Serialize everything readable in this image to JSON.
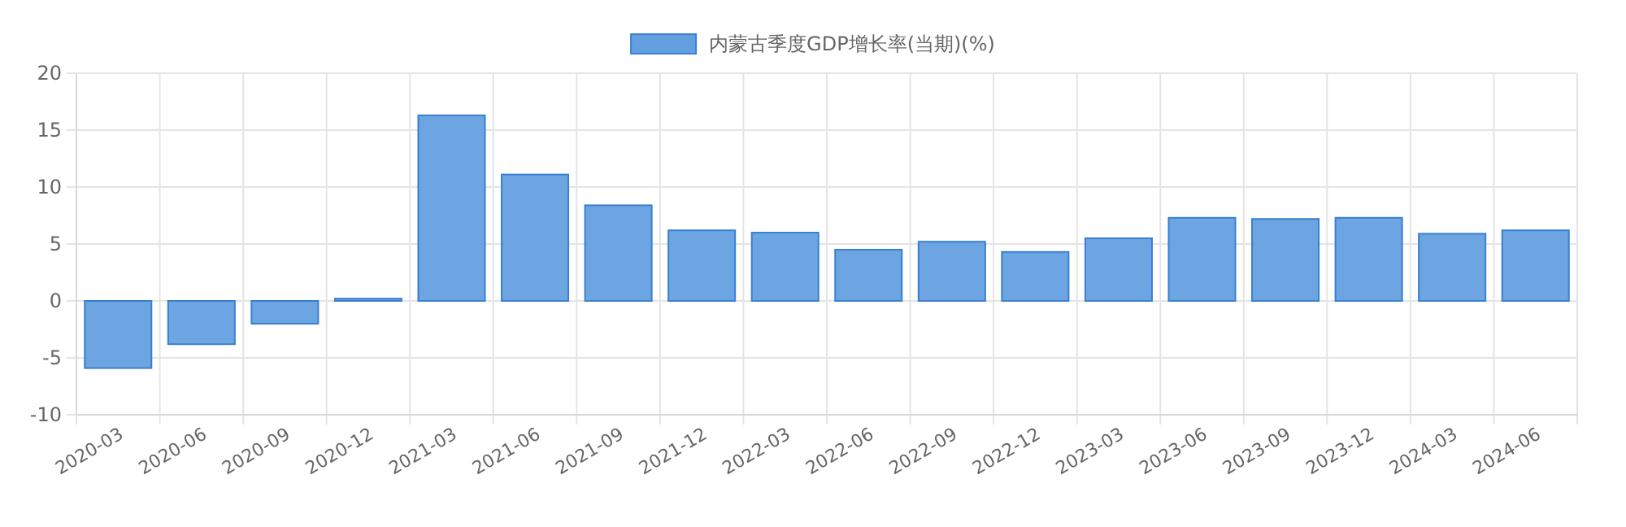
{
  "chart_data": {
    "type": "bar",
    "categories": [
      "2020-03",
      "2020-06",
      "2020-09",
      "2020-12",
      "2021-03",
      "2021-06",
      "2021-09",
      "2021-12",
      "2022-03",
      "2022-06",
      "2022-09",
      "2022-12",
      "2023-03",
      "2023-06",
      "2023-09",
      "2023-12",
      "2024-03",
      "2024-06"
    ],
    "series": [
      {
        "name": "内蒙古季度GDP增长率(当期)(%)",
        "color": "#64a0e0",
        "values": [
          -5.9,
          -3.8,
          -2.0,
          0.2,
          16.3,
          11.1,
          8.4,
          6.2,
          6.0,
          4.5,
          5.2,
          4.3,
          5.5,
          7.3,
          7.2,
          7.3,
          5.9,
          6.2
        ]
      }
    ],
    "ylim": [
      -10,
      20
    ],
    "yticks": [
      -10,
      -5,
      0,
      5,
      10,
      15,
      20
    ],
    "grid": true,
    "legend": "top"
  }
}
